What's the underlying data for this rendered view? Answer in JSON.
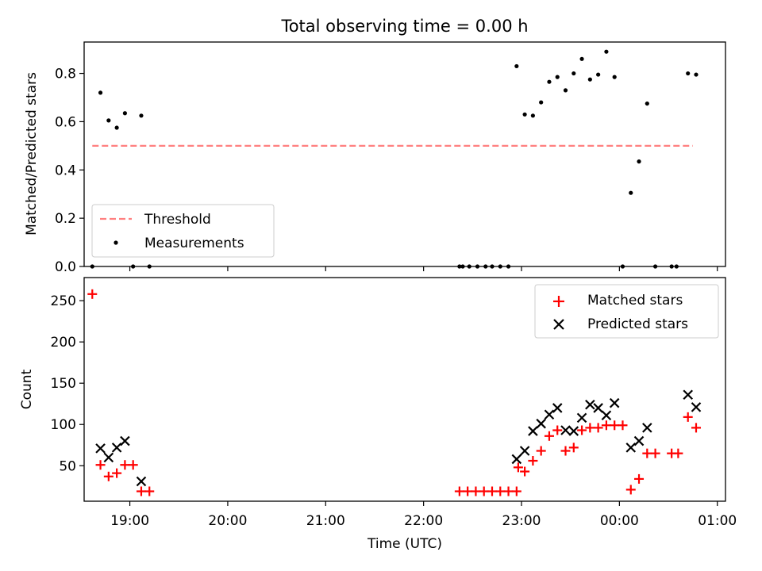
{
  "chart_data": [
    {
      "type": "scatter",
      "title": "Total observing time = 0.00 h",
      "ylabel": "Matched/Predicted stars",
      "xlabel": "",
      "xlim": [
        "18:32",
        "01:05"
      ],
      "ylim": [
        0,
        0.93
      ],
      "yticks": [
        0.0,
        0.2,
        0.4,
        0.6,
        0.8
      ],
      "ytick_labels": [
        "0.0",
        "0.2",
        "0.4",
        "0.6",
        "0.8"
      ],
      "grid": false,
      "legend": "lower-left",
      "threshold": {
        "name": "Threshold",
        "value": 0.5,
        "x": [
          "18:37",
          "00:45"
        ],
        "color": "#ff8080",
        "style": "dashed"
      },
      "series": [
        {
          "name": "Measurements",
          "color": "#000000",
          "points": [
            [
              "18:37",
              0.0
            ],
            [
              "18:42",
              0.72
            ],
            [
              "18:47",
              0.605
            ],
            [
              "18:52",
              0.575
            ],
            [
              "18:57",
              0.635
            ],
            [
              "19:02",
              0.0
            ],
            [
              "19:07",
              0.625
            ],
            [
              "19:12",
              0.0
            ],
            [
              "22:22",
              0.0
            ],
            [
              "22:24",
              0.0
            ],
            [
              "22:28",
              0.0
            ],
            [
              "22:33",
              0.0
            ],
            [
              "22:38",
              0.0
            ],
            [
              "22:42",
              0.0
            ],
            [
              "22:47",
              0.0
            ],
            [
              "22:52",
              0.0
            ],
            [
              "22:57",
              0.83
            ],
            [
              "23:02",
              0.63
            ],
            [
              "23:07",
              0.625
            ],
            [
              "23:12",
              0.68
            ],
            [
              "23:17",
              0.765
            ],
            [
              "23:22",
              0.785
            ],
            [
              "23:27",
              0.73
            ],
            [
              "23:32",
              0.8
            ],
            [
              "23:37",
              0.86
            ],
            [
              "23:42",
              0.775
            ],
            [
              "23:47",
              0.795
            ],
            [
              "23:52",
              0.89
            ],
            [
              "23:57",
              0.785
            ],
            [
              "00:02",
              0.0
            ],
            [
              "00:07",
              0.305
            ],
            [
              "00:12",
              0.435
            ],
            [
              "00:17",
              0.675
            ],
            [
              "00:22",
              0.0
            ],
            [
              "00:32",
              0.0
            ],
            [
              "00:35",
              0.0
            ],
            [
              "00:42",
              0.8
            ],
            [
              "00:47",
              0.795
            ]
          ]
        }
      ]
    },
    {
      "type": "scatter",
      "title": "",
      "ylabel": "Count",
      "xlabel": "Time (UTC)",
      "xlim": [
        "18:32",
        "01:05"
      ],
      "ylim": [
        7,
        278
      ],
      "yticks": [
        50,
        100,
        150,
        200,
        250
      ],
      "ytick_labels": [
        "50",
        "100",
        "150",
        "200",
        "250"
      ],
      "xticks": [
        "19:00",
        "20:00",
        "21:00",
        "22:00",
        "23:00",
        "00:00",
        "01:00"
      ],
      "grid": false,
      "legend": "upper-right",
      "series": [
        {
          "name": "Matched stars",
          "color": "#ff0000",
          "marker": "plus",
          "points": [
            [
              "18:37",
              258
            ],
            [
              "18:42",
              51
            ],
            [
              "18:47",
              37
            ],
            [
              "18:52",
              41
            ],
            [
              "18:57",
              51
            ],
            [
              "19:02",
              51
            ],
            [
              "19:07",
              19
            ],
            [
              "19:12",
              19
            ],
            [
              "22:22",
              19
            ],
            [
              "22:27",
              19
            ],
            [
              "22:32",
              19
            ],
            [
              "22:37",
              19
            ],
            [
              "22:42",
              19
            ],
            [
              "22:47",
              19
            ],
            [
              "22:52",
              19
            ],
            [
              "22:57",
              19
            ],
            [
              "22:58",
              48
            ],
            [
              "23:02",
              43
            ],
            [
              "23:07",
              56
            ],
            [
              "23:12",
              68
            ],
            [
              "23:17",
              86
            ],
            [
              "23:22",
              93
            ],
            [
              "23:27",
              68
            ],
            [
              "23:32",
              72
            ],
            [
              "23:37",
              93
            ],
            [
              "23:42",
              96
            ],
            [
              "23:47",
              96
            ],
            [
              "23:52",
              99
            ],
            [
              "23:57",
              99
            ],
            [
              "00:02",
              99
            ],
            [
              "00:07",
              21
            ],
            [
              "00:12",
              34
            ],
            [
              "00:17",
              65
            ],
            [
              "00:22",
              65
            ],
            [
              "00:32",
              65
            ],
            [
              "00:36",
              65
            ],
            [
              "00:42",
              109
            ],
            [
              "00:47",
              96
            ]
          ]
        },
        {
          "name": "Predicted stars",
          "color": "#000000",
          "marker": "x",
          "points": [
            [
              "18:42",
              71
            ],
            [
              "18:47",
              60
            ],
            [
              "18:52",
              72
            ],
            [
              "18:57",
              80
            ],
            [
              "19:07",
              31
            ],
            [
              "22:57",
              58
            ],
            [
              "23:02",
              68
            ],
            [
              "23:07",
              92
            ],
            [
              "23:12",
              101
            ],
            [
              "23:17",
              112
            ],
            [
              "23:22",
              120
            ],
            [
              "23:27",
              93
            ],
            [
              "23:32",
              92
            ],
            [
              "23:37",
              108
            ],
            [
              "23:42",
              124
            ],
            [
              "23:47",
              120
            ],
            [
              "23:52",
              111
            ],
            [
              "23:57",
              126
            ],
            [
              "00:07",
              72
            ],
            [
              "00:12",
              80
            ],
            [
              "00:17",
              96
            ],
            [
              "00:42",
              136
            ],
            [
              "00:47",
              121
            ]
          ]
        }
      ]
    }
  ]
}
